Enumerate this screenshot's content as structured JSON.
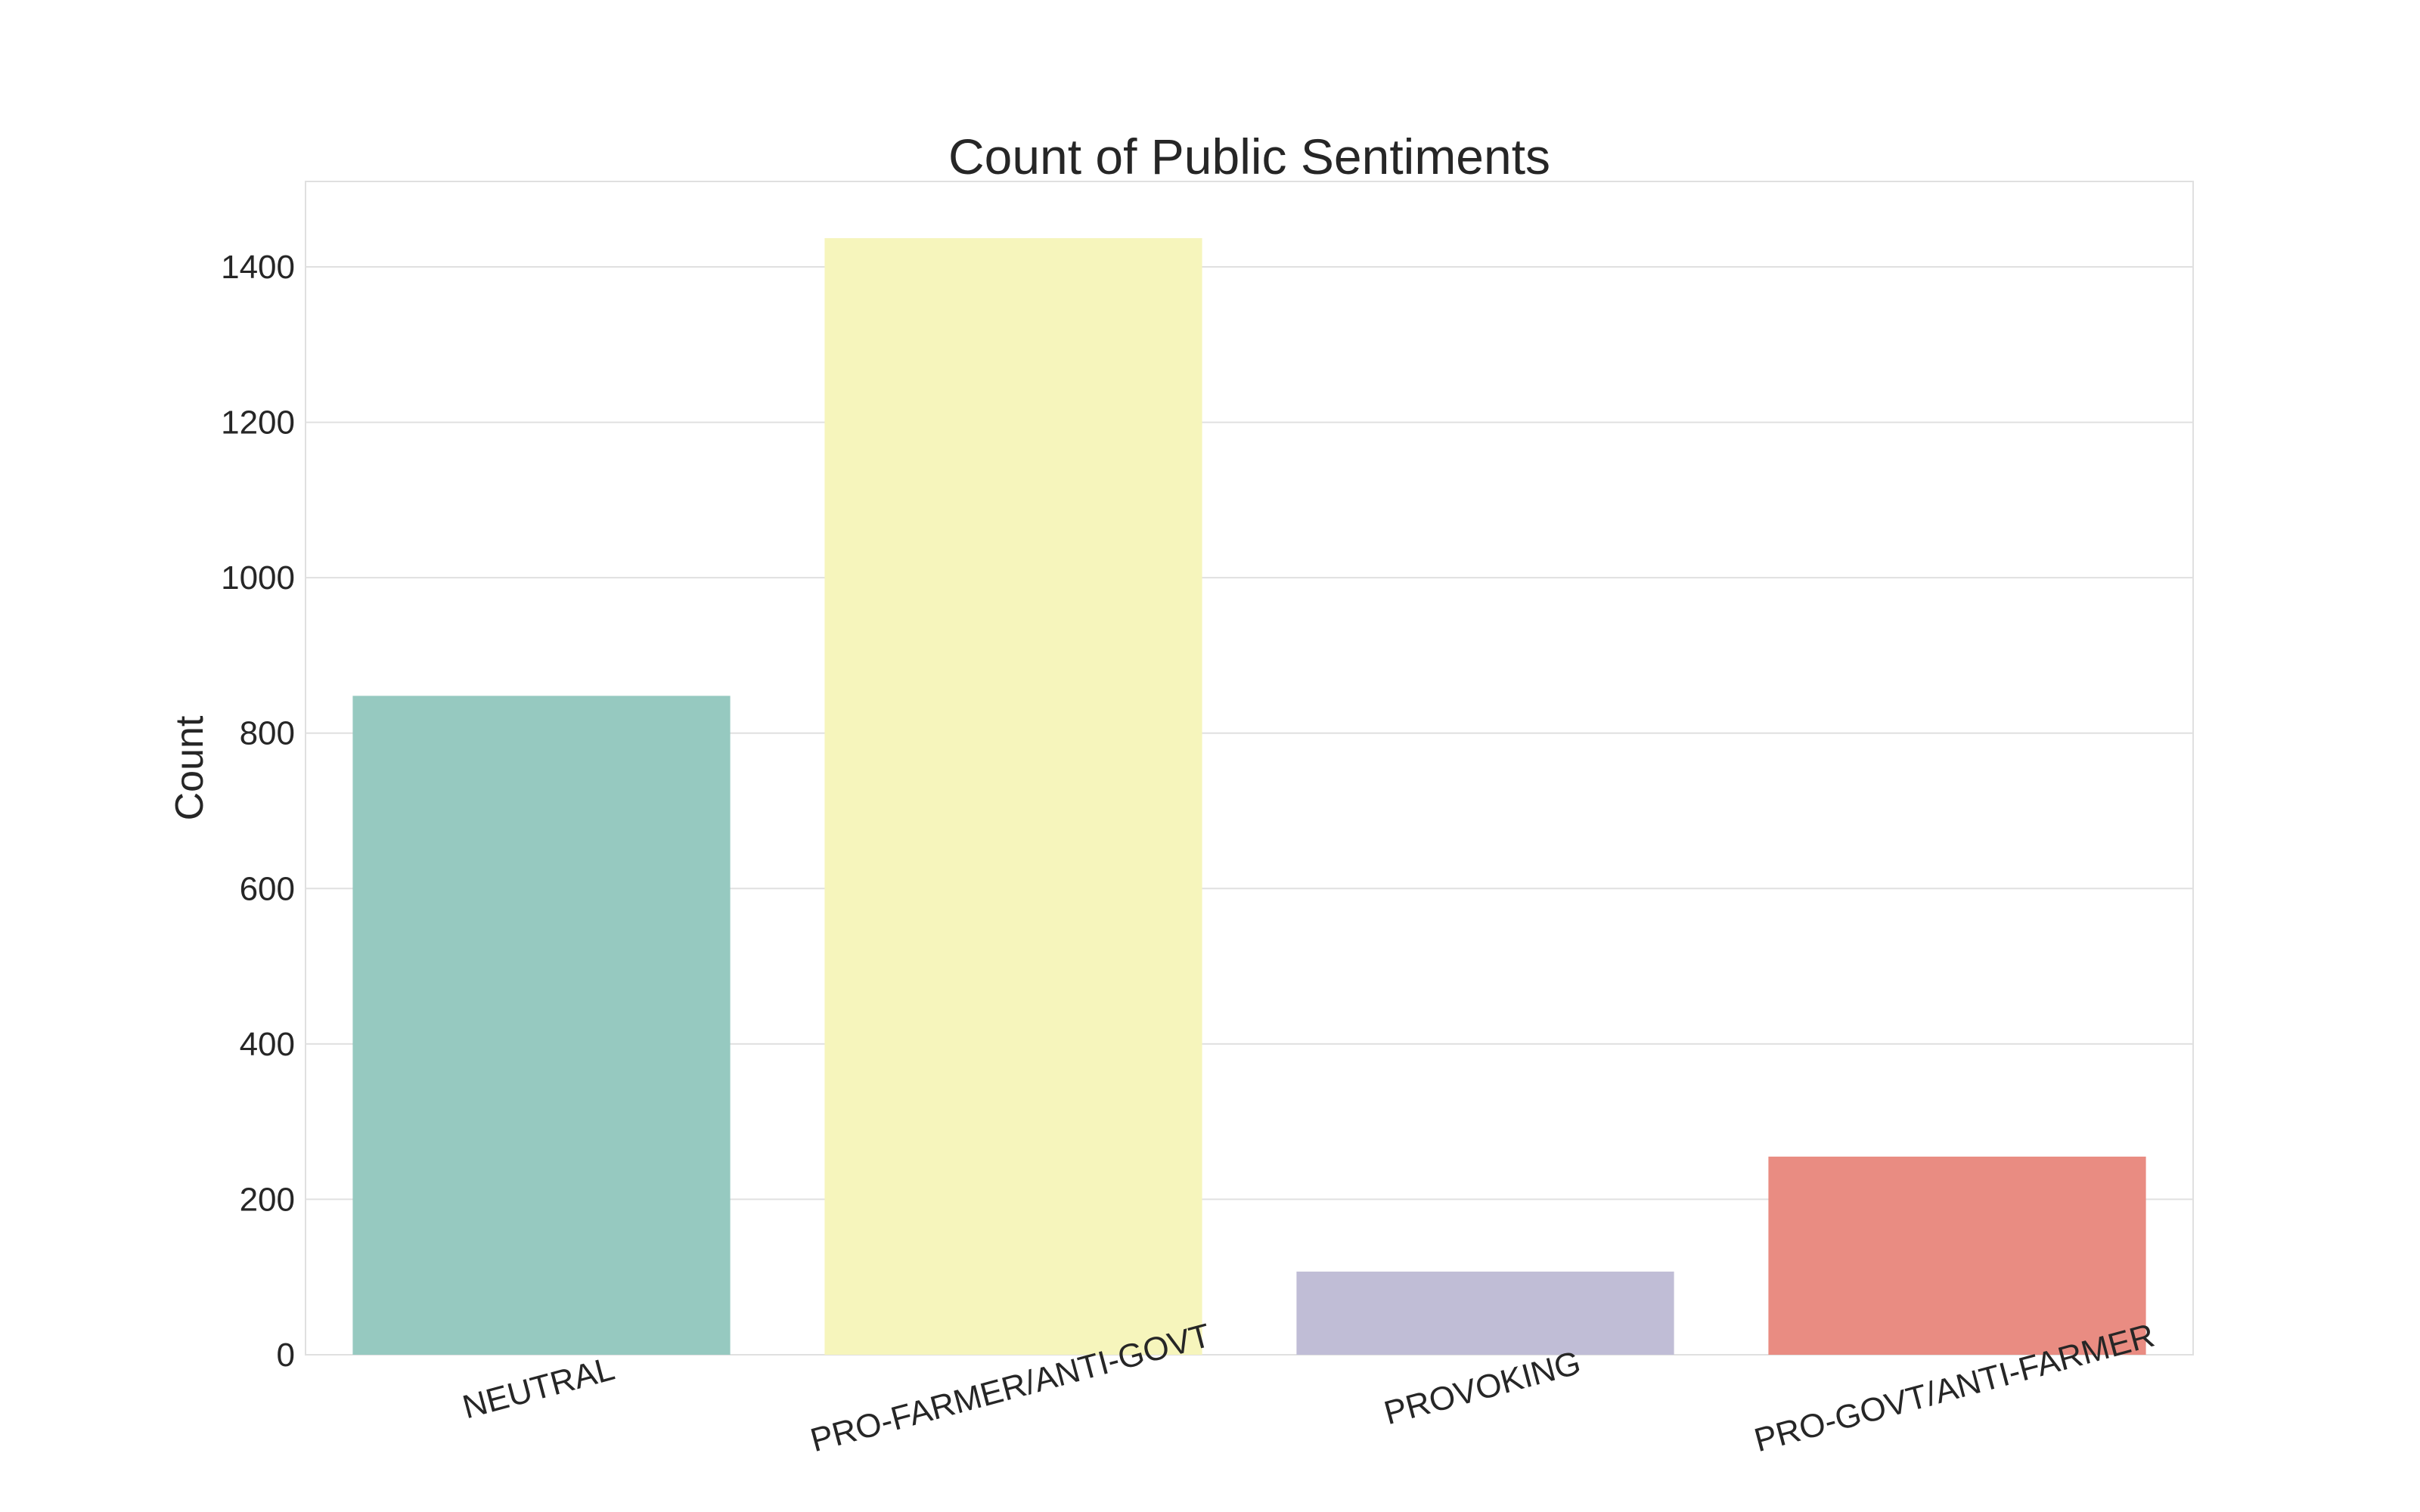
{
  "chart_data": {
    "type": "bar",
    "title": "Count of Public Sentiments",
    "xlabel": "",
    "ylabel": "Count",
    "categories": [
      "NEUTRAL",
      "PRO-FARMER/ANTI-GOVT",
      "PROVOKING",
      "PRO-GOVT/ANTI-FARMER"
    ],
    "values": [
      848,
      1437,
      107,
      255
    ],
    "colors": [
      "#96c9c0",
      "#f6f5bc",
      "#c0bdd6",
      "#e98c82"
    ],
    "ylim": [
      0,
      1510
    ],
    "yticks": [
      0,
      200,
      400,
      600,
      800,
      1000,
      1200,
      1400
    ],
    "grid": true,
    "legend": "none"
  }
}
